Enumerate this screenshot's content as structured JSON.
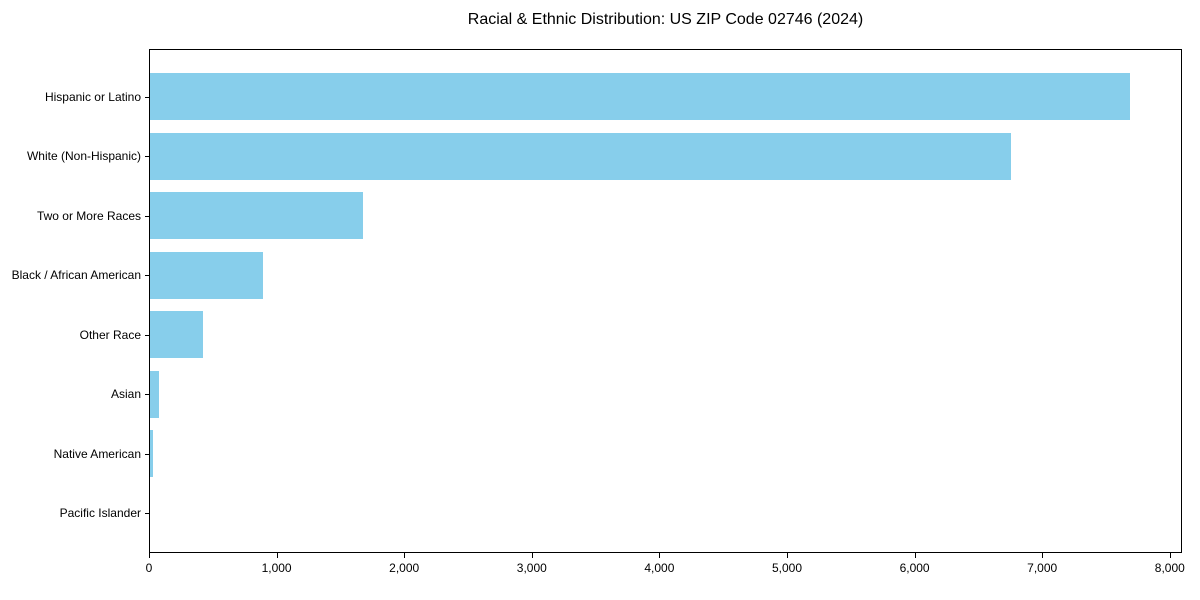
{
  "chart_data": {
    "type": "bar",
    "orientation": "horizontal",
    "title": "Racial & Ethnic Distribution: US ZIP Code 02746 (2024)",
    "xlabel": "",
    "ylabel": "",
    "categories": [
      "Hispanic or Latino",
      "White (Non-Hispanic)",
      "Two or More Races",
      "Black / African American",
      "Other Race",
      "Asian",
      "Native American",
      "Pacific Islander"
    ],
    "values": [
      7680,
      6750,
      1670,
      885,
      415,
      70,
      20,
      0
    ],
    "xlim": [
      0,
      8080
    ],
    "x_ticks": [
      0,
      1000,
      2000,
      3000,
      4000,
      5000,
      6000,
      7000,
      8000
    ],
    "x_tick_labels": [
      "0",
      "1,000",
      "2,000",
      "3,000",
      "4,000",
      "5,000",
      "6,000",
      "7,000",
      "8,000"
    ],
    "bar_color": "#87CEEB",
    "text_color": "#000000",
    "grid": false,
    "legend": false
  }
}
